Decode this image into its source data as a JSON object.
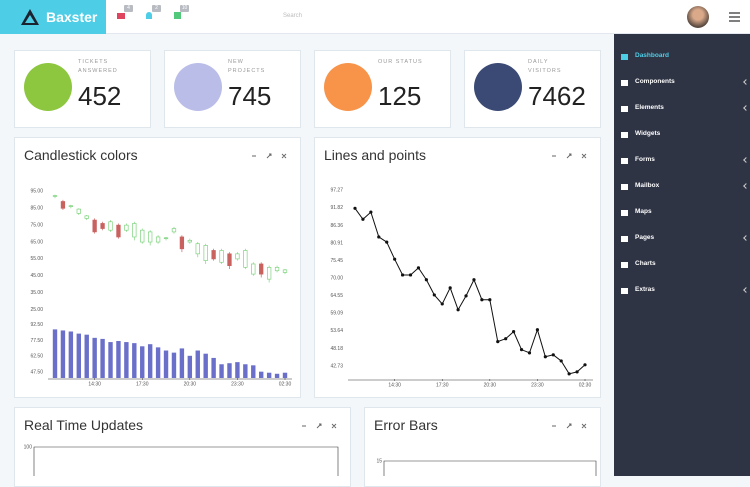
{
  "header": {
    "brand": "Baxster",
    "badges": [
      "4",
      "2",
      "10"
    ],
    "search_placeholder": "Search"
  },
  "stats": [
    {
      "label": "TICKETS ANSWERED",
      "value": 452,
      "color": "#8dc63f"
    },
    {
      "label": "NEW PROJECTS",
      "value": 745,
      "color": "#b9bde8"
    },
    {
      "label": "OUR STATUS",
      "value": 125,
      "color": "#f7944a"
    },
    {
      "label": "DAILY VISITORS",
      "value": 7462,
      "color": "#3b4a74"
    }
  ],
  "sidebar": [
    "Dashboard",
    "Components",
    "Elements",
    "Widgets",
    "Forms",
    "Mailbox",
    "Maps",
    "Pages",
    "Charts",
    "Extras"
  ],
  "chart_data": [
    {
      "type": "candlestick",
      "title": "Candlestick colors",
      "x": [
        0,
        1,
        2,
        3,
        4,
        5,
        6,
        7,
        8,
        9,
        10,
        11,
        12,
        13,
        14,
        15,
        16,
        17,
        18,
        19,
        20,
        21,
        22,
        23,
        24,
        25,
        26,
        27,
        28,
        29
      ],
      "open": [
        92,
        89,
        86,
        82,
        79,
        78,
        76,
        72,
        75,
        72,
        68,
        65,
        65,
        65,
        67,
        71,
        68,
        65,
        58,
        54,
        60,
        53,
        58,
        55,
        50,
        46,
        52,
        43,
        48,
        47
      ],
      "high": [
        93,
        90,
        87,
        85,
        81,
        79,
        77,
        78,
        76,
        76,
        77,
        73,
        72,
        69,
        68,
        74,
        69,
        67,
        65,
        64,
        61,
        61,
        59,
        59,
        61,
        53,
        53,
        51,
        51,
        49
      ],
      "low": [
        91,
        84,
        85,
        81,
        78,
        70,
        72,
        71,
        67,
        71,
        66,
        64,
        63,
        64,
        66,
        70,
        59,
        64,
        56,
        52,
        54,
        52,
        49,
        54,
        49,
        45,
        44,
        41,
        47,
        46
      ],
      "close": [
        92.5,
        85,
        86.5,
        84.5,
        80.5,
        71,
        73,
        77,
        68,
        75,
        76,
        72,
        71,
        68,
        67.5,
        73,
        61,
        66,
        64,
        63,
        55,
        60,
        51,
        58,
        60,
        52,
        46,
        50,
        50,
        48.5
      ],
      "volume": [
        88,
        87,
        86,
        84,
        83,
        80,
        79,
        76,
        77,
        76,
        75,
        72,
        74,
        71,
        68,
        66,
        70,
        63,
        68,
        65,
        61,
        55,
        56,
        57,
        55,
        54,
        48,
        47,
        46,
        47
      ],
      "up_color": "#7fd37f",
      "down_color": "#c9625f",
      "volume_color": "#6a6fc9",
      "xlim": [
        0,
        29
      ],
      "xticks": [
        {
          "value": 5,
          "label": "14:30"
        },
        {
          "value": 11,
          "label": "17:30"
        },
        {
          "value": 17,
          "label": "20:30"
        },
        {
          "value": 23,
          "label": "23:30"
        },
        {
          "value": 29,
          "label": "02:30"
        }
      ],
      "ylim": [
        20,
        97
      ],
      "yticks": [
        {
          "value": 95,
          "label": "95.00"
        },
        {
          "value": 85,
          "label": "85.00"
        },
        {
          "value": 75,
          "label": "75.00"
        },
        {
          "value": 65,
          "label": "65.00"
        },
        {
          "value": 55,
          "label": "55.00"
        },
        {
          "value": 45,
          "label": "45.00"
        },
        {
          "value": 35,
          "label": "35.00"
        },
        {
          "value": 25,
          "label": "25.00"
        }
      ],
      "volume_ylim": [
        42,
        95
      ],
      "volume_yticks": [
        {
          "value": 92.5,
          "label": "92.50"
        },
        {
          "value": 77.5,
          "label": "77.50"
        },
        {
          "value": 62.5,
          "label": "62.50"
        },
        {
          "value": 47.5,
          "label": "47.50"
        }
      ]
    },
    {
      "type": "line",
      "title": "Lines and points",
      "x": [
        0,
        1,
        2,
        3,
        4,
        5,
        6,
        7,
        8,
        9,
        10,
        11,
        12,
        13,
        14,
        15,
        16,
        17,
        18,
        19,
        20,
        21,
        22,
        23,
        24,
        25,
        26,
        27,
        28,
        29
      ],
      "values": [
        91.7,
        88.3,
        90.5,
        82.8,
        81.2,
        75.9,
        71,
        71,
        73.2,
        69.5,
        64.8,
        62,
        67,
        60.2,
        64.5,
        69.5,
        63.3,
        63.3,
        50.3,
        51.2,
        53.4,
        47.8,
        46.8,
        54,
        45.6,
        46.2,
        44.3,
        40.3,
        40.9,
        43.1
      ],
      "color": "#111111",
      "xlim": [
        0,
        29
      ],
      "xticks": [
        {
          "value": 5,
          "label": "14:30"
        },
        {
          "value": 11,
          "label": "17:30"
        },
        {
          "value": 17,
          "label": "20:30"
        },
        {
          "value": 23,
          "label": "23:30"
        },
        {
          "value": 29,
          "label": "02:30"
        }
      ],
      "ylim": [
        39,
        98
      ],
      "yticks": [
        {
          "value": 97.27,
          "label": "97.27"
        },
        {
          "value": 91.82,
          "label": "91.82"
        },
        {
          "value": 86.36,
          "label": "86.36"
        },
        {
          "value": 80.91,
          "label": "80.91"
        },
        {
          "value": 75.45,
          "label": "75.45"
        },
        {
          "value": 70,
          "label": "70.00"
        },
        {
          "value": 64.55,
          "label": "64.55"
        },
        {
          "value": 59.09,
          "label": "59.09"
        },
        {
          "value": 53.64,
          "label": "53.64"
        },
        {
          "value": 48.18,
          "label": "48.18"
        },
        {
          "value": 42.73,
          "label": "42.73"
        }
      ]
    }
  ],
  "bottom_panels": [
    {
      "title": "Real Time Updates",
      "ytick": 100
    },
    {
      "title": "Error Bars",
      "ytick": 15
    }
  ]
}
